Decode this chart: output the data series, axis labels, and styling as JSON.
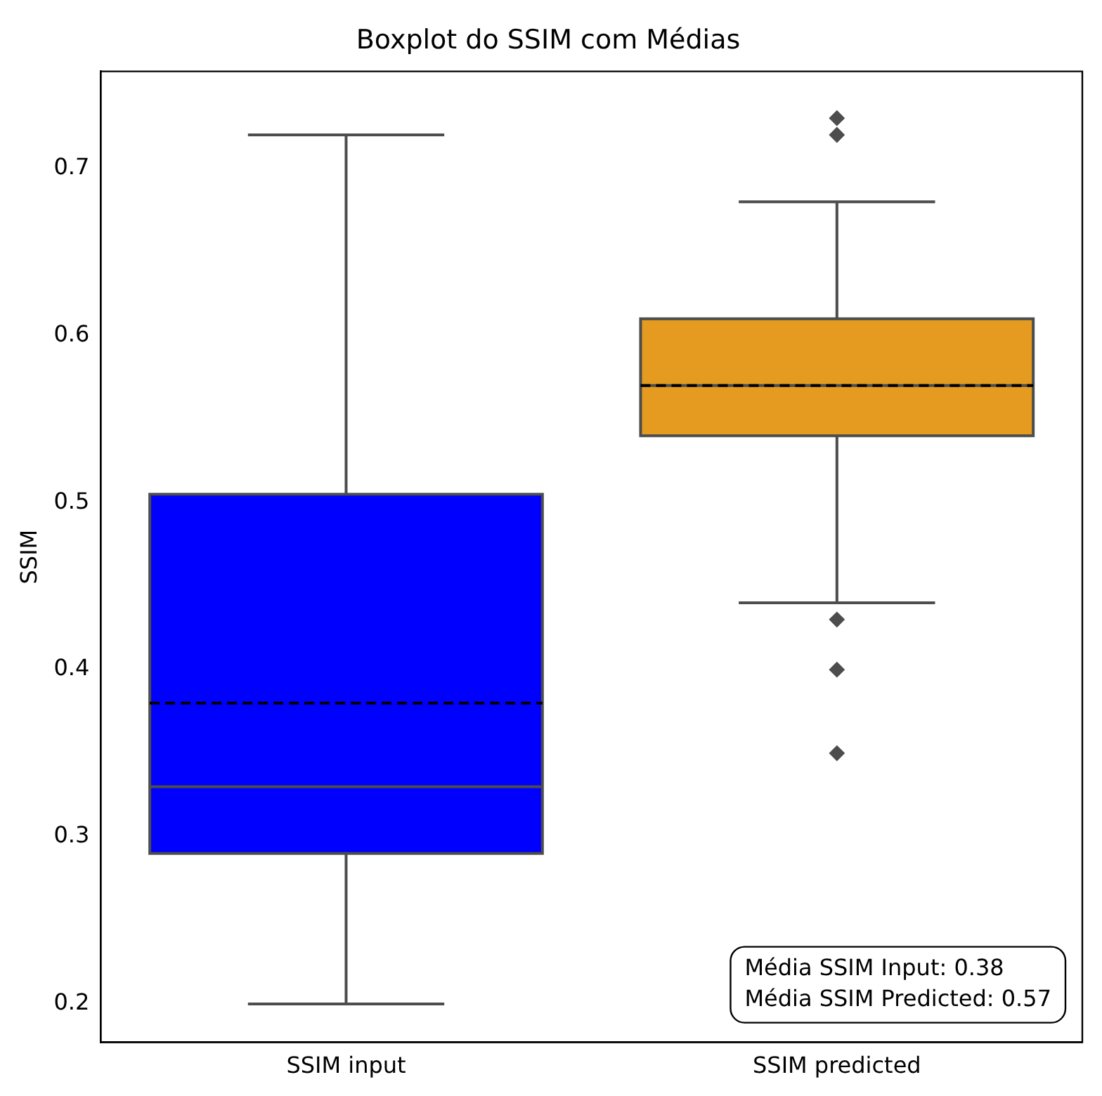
{
  "chart_data": {
    "type": "box",
    "title": "Boxplot do SSIM com Médias",
    "ylabel": "SSIM",
    "categories": [
      "SSIM input",
      "SSIM predicted"
    ],
    "colors": [
      "#0000ff",
      "#e49b1f"
    ],
    "boxes": [
      {
        "low": 0.2,
        "q1": 0.29,
        "median": 0.33,
        "q3": 0.505,
        "high": 0.72,
        "mean": 0.38
      },
      {
        "low": 0.44,
        "q1": 0.54,
        "median": 0.57,
        "q3": 0.61,
        "high": 0.68,
        "mean": 0.57,
        "outliers": [
          0.73,
          0.72,
          0.43,
          0.4,
          0.35
        ]
      }
    ],
    "ylim": [
      0.177,
      0.758
    ],
    "yticks": [
      0.2,
      0.3,
      0.4,
      0.5,
      0.6,
      0.7
    ],
    "grid": false,
    "legend": false,
    "annotations": [
      "Média SSIM Input: 0.38",
      "Média SSIM Predicted: 0.57"
    ]
  }
}
